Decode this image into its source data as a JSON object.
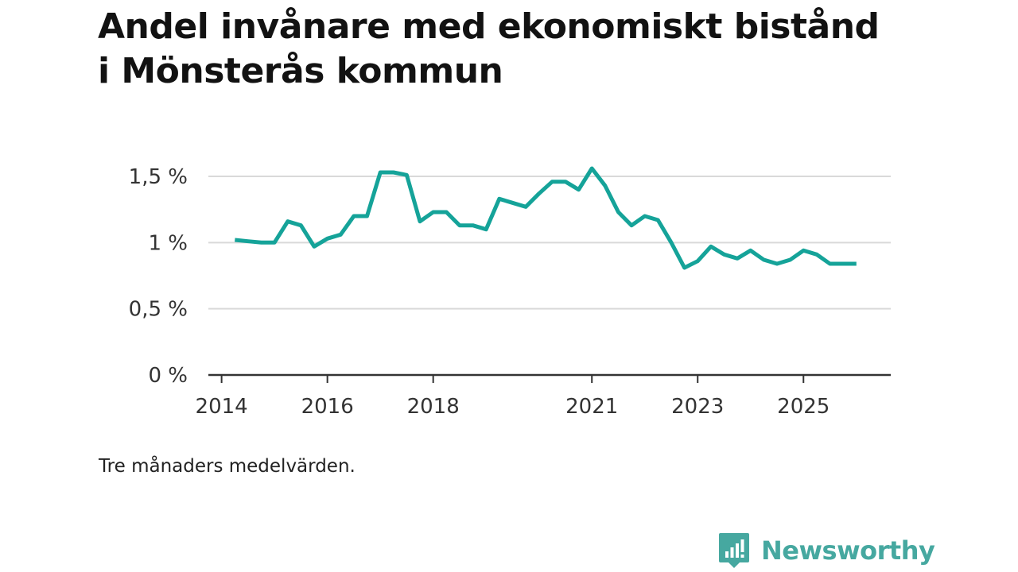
{
  "chart_data": {
    "type": "line",
    "title": "Andel invånare med ekonomiskt bistånd i Mönsterås kommun",
    "xlabel": "",
    "ylabel": "",
    "ylim": [
      0,
      1.5
    ],
    "yticks": [
      {
        "value": 0,
        "label": "0 %"
      },
      {
        "value": 0.5,
        "label": "0,5 %"
      },
      {
        "value": 1.0,
        "label": "1 %"
      },
      {
        "value": 1.5,
        "label": "1,5 %"
      }
    ],
    "xlim": [
      2013.75,
      2026.65
    ],
    "xticks": [
      {
        "value": 2014,
        "label": "2014"
      },
      {
        "value": 2016,
        "label": "2016"
      },
      {
        "value": 2018,
        "label": "2018"
      },
      {
        "value": 2021,
        "label": "2021"
      },
      {
        "value": 2023,
        "label": "2023"
      },
      {
        "value": 2025,
        "label": "2025"
      }
    ],
    "line_color": "#15a399",
    "series": [
      {
        "name": "Andel invånare med ekonomiskt bistånd",
        "x": [
          2014.25,
          2014.5,
          2014.75,
          2015.0,
          2015.25,
          2015.5,
          2015.75,
          2016.0,
          2016.25,
          2016.5,
          2016.75,
          2017.0,
          2017.25,
          2017.5,
          2017.75,
          2018.0,
          2018.25,
          2018.5,
          2018.75,
          2019.0,
          2019.25,
          2019.5,
          2019.75,
          2020.0,
          2020.25,
          2020.5,
          2020.75,
          2021.0,
          2021.25,
          2021.5,
          2021.75,
          2022.0,
          2022.25,
          2022.5,
          2022.75,
          2023.0,
          2023.25,
          2023.5,
          2023.75,
          2024.0,
          2024.25,
          2024.5,
          2024.75,
          2025.0,
          2025.25,
          2025.5,
          2025.75,
          2026.0
        ],
        "values": [
          1.02,
          1.01,
          1.0,
          1.0,
          1.16,
          1.13,
          0.97,
          1.03,
          1.06,
          1.2,
          1.2,
          1.53,
          1.53,
          1.51,
          1.16,
          1.23,
          1.23,
          1.13,
          1.13,
          1.1,
          1.33,
          1.3,
          1.27,
          1.37,
          1.46,
          1.46,
          1.4,
          1.56,
          1.43,
          1.23,
          1.13,
          1.2,
          1.17,
          1.0,
          0.81,
          0.86,
          0.97,
          0.91,
          0.88,
          0.94,
          0.87,
          0.84,
          0.87,
          0.94,
          0.91,
          0.84,
          0.84,
          0.84
        ]
      }
    ]
  },
  "note": "Tre månaders medelvärden.",
  "brand": {
    "name": "Newsworthy",
    "icon": "newsworthy-logo-icon",
    "color": "#46a8a0"
  }
}
